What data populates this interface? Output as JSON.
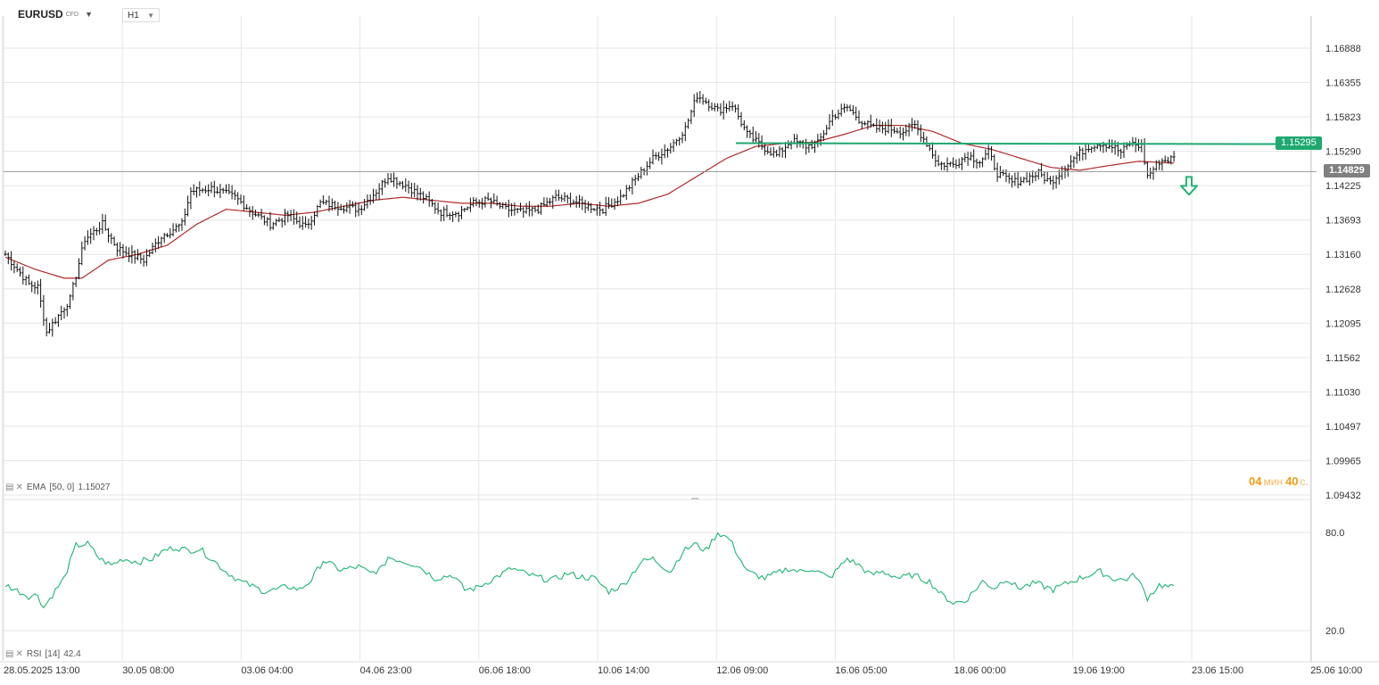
{
  "header": {
    "symbol": "EURUSD",
    "instrument_type": "CFD",
    "timeframe": "H1"
  },
  "colors": {
    "price_bars": "#111111",
    "ema": "#b22a2a",
    "rsi": "#1fb574",
    "hline": "#1fa870",
    "current_price_tag": "#808080",
    "countdown": "#f39c12"
  },
  "indicators": {
    "ema": {
      "name": "EMA",
      "params": "[50, 0]",
      "value": "1.15027"
    },
    "rsi": {
      "name": "RSI",
      "params": "[14]",
      "value": "42.4"
    }
  },
  "countdown": {
    "minutes": "04",
    "minutes_unit": "мин",
    "seconds": "40",
    "seconds_unit": "с."
  },
  "chart_data": [
    {
      "type": "ohlc",
      "series_name": "EURUSD",
      "y_ticks": [
        "1.16888",
        "1.16355",
        "1.15823",
        "1.15290",
        "1.14225",
        "1.13693",
        "1.13160",
        "1.12628",
        "1.12095",
        "1.11562",
        "1.11030",
        "1.10497",
        "1.09965",
        "1.09432"
      ],
      "x_ticks": [
        "28.05.2025  13:00",
        "30.05  08:00",
        "03.06  04:00",
        "04.06  23:00",
        "06.06  18:00",
        "10.06  14:00",
        "12.06  09:00",
        "16.06  05:00",
        "18.06  00:00",
        "19.06  19:00",
        "23.06  15:00",
        "25.06  10:00"
      ],
      "ylim": [
        1.09432,
        1.16888
      ],
      "horizontal_line": {
        "value": 1.15295,
        "label": "1.15295"
      },
      "current_price": {
        "value": 1.14829,
        "label": "1.14829"
      },
      "signal": "down-arrow",
      "anchors": [
        [
          0,
          1.1345
        ],
        [
          8,
          1.1295
        ],
        [
          11,
          1.129
        ],
        [
          14,
          1.1215
        ],
        [
          22,
          1.127
        ],
        [
          27,
          1.137
        ],
        [
          33,
          1.1395
        ],
        [
          38,
          1.1355
        ],
        [
          47,
          1.1335
        ],
        [
          53,
          1.1375
        ],
        [
          60,
          1.1395
        ],
        [
          63,
          1.145
        ],
        [
          70,
          1.1455
        ],
        [
          78,
          1.144
        ],
        [
          84,
          1.1415
        ],
        [
          90,
          1.1395
        ],
        [
          96,
          1.141
        ],
        [
          102,
          1.139
        ],
        [
          107,
          1.143
        ],
        [
          114,
          1.1425
        ],
        [
          120,
          1.142
        ],
        [
          126,
          1.145
        ],
        [
          130,
          1.1475
        ],
        [
          136,
          1.146
        ],
        [
          142,
          1.144
        ],
        [
          148,
          1.1415
        ],
        [
          154,
          1.1415
        ],
        [
          159,
          1.143
        ],
        [
          164,
          1.1435
        ],
        [
          170,
          1.142
        ],
        [
          176,
          1.1415
        ],
        [
          181,
          1.142
        ],
        [
          187,
          1.144
        ],
        [
          192,
          1.1435
        ],
        [
          198,
          1.1425
        ],
        [
          203,
          1.142
        ],
        [
          209,
          1.144
        ],
        [
          214,
          1.147
        ],
        [
          220,
          1.1505
        ],
        [
          226,
          1.1525
        ],
        [
          231,
          1.1555
        ],
        [
          235,
          1.161
        ],
        [
          238,
          1.16
        ],
        [
          242,
          1.1585
        ],
        [
          247,
          1.1595
        ],
        [
          252,
          1.1545
        ],
        [
          257,
          1.1525
        ],
        [
          262,
          1.151
        ],
        [
          267,
          1.1535
        ],
        [
          272,
          1.1525
        ],
        [
          276,
          1.153
        ],
        [
          281,
          1.1575
        ],
        [
          286,
          1.159
        ],
        [
          290,
          1.157
        ],
        [
          295,
          1.1555
        ],
        [
          300,
          1.1555
        ],
        [
          305,
          1.155
        ],
        [
          309,
          1.156
        ],
        [
          313,
          1.153
        ],
        [
          317,
          1.1495
        ],
        [
          322,
          1.1495
        ],
        [
          327,
          1.151
        ],
        [
          331,
          1.15
        ],
        [
          334,
          1.1515
        ],
        [
          337,
          1.148
        ],
        [
          342,
          1.1465
        ],
        [
          346,
          1.147
        ],
        [
          351,
          1.148
        ],
        [
          355,
          1.1465
        ],
        [
          360,
          1.149
        ],
        [
          364,
          1.151
        ],
        [
          368,
          1.1525
        ],
        [
          372,
          1.153
        ],
        [
          376,
          1.1525
        ],
        [
          379,
          1.1515
        ],
        [
          382,
          1.153
        ],
        [
          386,
          1.1525
        ],
        [
          388,
          1.1475
        ],
        [
          392,
          1.15
        ],
        [
          397,
          1.1505
        ]
      ],
      "ema_anchors": [
        [
          0,
          1.134
        ],
        [
          10,
          1.132
        ],
        [
          20,
          1.1305
        ],
        [
          26,
          1.1305
        ],
        [
          35,
          1.1335
        ],
        [
          45,
          1.1345
        ],
        [
          55,
          1.136
        ],
        [
          65,
          1.1395
        ],
        [
          75,
          1.142
        ],
        [
          85,
          1.1415
        ],
        [
          95,
          1.141
        ],
        [
          105,
          1.1415
        ],
        [
          115,
          1.1425
        ],
        [
          125,
          1.1435
        ],
        [
          135,
          1.144
        ],
        [
          145,
          1.1435
        ],
        [
          155,
          1.143
        ],
        [
          165,
          1.143
        ],
        [
          175,
          1.1425
        ],
        [
          185,
          1.1425
        ],
        [
          195,
          1.143
        ],
        [
          205,
          1.1425
        ],
        [
          215,
          1.143
        ],
        [
          225,
          1.1445
        ],
        [
          235,
          1.1475
        ],
        [
          245,
          1.1505
        ],
        [
          255,
          1.1525
        ],
        [
          265,
          1.153
        ],
        [
          275,
          1.1532
        ],
        [
          285,
          1.1545
        ],
        [
          295,
          1.156
        ],
        [
          305,
          1.156
        ],
        [
          315,
          1.155
        ],
        [
          325,
          1.153
        ],
        [
          335,
          1.152
        ],
        [
          345,
          1.1505
        ],
        [
          355,
          1.149
        ],
        [
          365,
          1.1485
        ],
        [
          375,
          1.1493
        ],
        [
          385,
          1.15
        ],
        [
          397,
          1.1497
        ]
      ]
    },
    {
      "type": "line",
      "series_name": "RSI",
      "y_ticks": [
        "80.0",
        "20.0"
      ],
      "ylim": [
        20,
        80
      ],
      "anchors": [
        [
          0,
          48
        ],
        [
          8,
          41
        ],
        [
          11,
          42
        ],
        [
          13,
          34
        ],
        [
          16,
          42
        ],
        [
          20,
          52
        ],
        [
          24,
          72
        ],
        [
          28,
          73
        ],
        [
          32,
          64
        ],
        [
          36,
          60
        ],
        [
          40,
          64
        ],
        [
          45,
          62
        ],
        [
          50,
          64
        ],
        [
          54,
          69
        ],
        [
          58,
          71
        ],
        [
          62,
          69
        ],
        [
          66,
          70
        ],
        [
          70,
          64
        ],
        [
          75,
          56
        ],
        [
          80,
          50
        ],
        [
          84,
          47
        ],
        [
          88,
          44
        ],
        [
          92,
          45
        ],
        [
          96,
          47
        ],
        [
          100,
          45
        ],
        [
          104,
          51
        ],
        [
          108,
          63
        ],
        [
          114,
          57
        ],
        [
          120,
          59
        ],
        [
          124,
          55
        ],
        [
          128,
          58
        ],
        [
          130,
          65
        ],
        [
          134,
          63
        ],
        [
          140,
          60
        ],
        [
          146,
          52
        ],
        [
          152,
          54
        ],
        [
          156,
          45
        ],
        [
          160,
          46
        ],
        [
          166,
          52
        ],
        [
          172,
          58
        ],
        [
          178,
          54
        ],
        [
          182,
          52
        ],
        [
          186,
          51
        ],
        [
          191,
          55
        ],
        [
          195,
          53
        ],
        [
          200,
          52
        ],
        [
          205,
          44
        ],
        [
          210,
          48
        ],
        [
          216,
          62
        ],
        [
          220,
          64
        ],
        [
          226,
          56
        ],
        [
          230,
          68
        ],
        [
          234,
          73
        ],
        [
          238,
          69
        ],
        [
          242,
          80
        ],
        [
          246,
          76
        ],
        [
          252,
          56
        ],
        [
          258,
          52
        ],
        [
          266,
          58
        ],
        [
          270,
          56
        ],
        [
          274,
          58
        ],
        [
          280,
          52
        ],
        [
          286,
          64
        ],
        [
          290,
          60
        ],
        [
          294,
          54
        ],
        [
          298,
          56
        ],
        [
          304,
          52
        ],
        [
          308,
          54
        ],
        [
          314,
          50
        ],
        [
          318,
          42
        ],
        [
          322,
          37
        ],
        [
          326,
          38
        ],
        [
          332,
          50
        ],
        [
          336,
          46
        ],
        [
          340,
          52
        ],
        [
          344,
          46
        ],
        [
          350,
          49
        ],
        [
          356,
          45
        ],
        [
          362,
          50
        ],
        [
          368,
          54
        ],
        [
          372,
          56
        ],
        [
          376,
          52
        ],
        [
          380,
          51
        ],
        [
          384,
          54
        ],
        [
          388,
          40
        ],
        [
          392,
          48
        ],
        [
          397,
          46
        ]
      ]
    }
  ]
}
